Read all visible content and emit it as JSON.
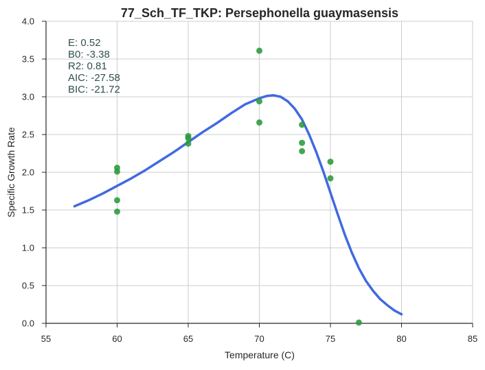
{
  "chart_data": {
    "type": "scatter",
    "title": "77_Sch_TF_TKP: Persephonella guaymasensis",
    "xlabel": "Temperature (C)",
    "ylabel": "Specific Growth Rate",
    "xlim": [
      55,
      85
    ],
    "ylim": [
      0.0,
      4.0
    ],
    "x_ticks": [
      "55",
      "60",
      "65",
      "70",
      "75",
      "80",
      "85"
    ],
    "y_ticks": [
      "0.0",
      "0.5",
      "1.0",
      "1.5",
      "2.0",
      "2.5",
      "3.0",
      "3.5",
      "4.0"
    ],
    "grid": true,
    "stats": [
      "E:  0.52",
      "B0:  -3.38",
      "R2:  0.81",
      "AIC: -27.58",
      "BIC: -21.72"
    ],
    "series": [
      {
        "kind": "points",
        "color": "#2a9a3a",
        "points": [
          [
            60,
            2.06
          ],
          [
            60,
            2.01
          ],
          [
            60,
            1.63
          ],
          [
            60,
            1.48
          ],
          [
            65,
            2.48
          ],
          [
            65,
            2.45
          ],
          [
            65,
            2.38
          ],
          [
            70,
            3.61
          ],
          [
            70,
            2.94
          ],
          [
            70,
            2.66
          ],
          [
            73,
            2.63
          ],
          [
            73,
            2.39
          ],
          [
            73,
            2.28
          ],
          [
            75,
            2.14
          ],
          [
            75,
            1.92
          ],
          [
            77,
            0.01
          ]
        ]
      },
      {
        "kind": "fit-line",
        "color": "#4169e1",
        "points": [
          [
            57,
            1.55
          ],
          [
            58,
            1.63
          ],
          [
            59,
            1.72
          ],
          [
            60,
            1.82
          ],
          [
            61,
            1.92
          ],
          [
            62,
            2.03
          ],
          [
            63,
            2.15
          ],
          [
            64,
            2.27
          ],
          [
            65,
            2.4
          ],
          [
            66,
            2.53
          ],
          [
            67,
            2.65
          ],
          [
            68,
            2.78
          ],
          [
            69,
            2.9
          ],
          [
            70,
            2.98
          ],
          [
            70.5,
            3.01
          ],
          [
            71,
            3.02
          ],
          [
            71.5,
            3.0
          ],
          [
            72,
            2.94
          ],
          [
            72.5,
            2.84
          ],
          [
            73,
            2.7
          ],
          [
            73.5,
            2.5
          ],
          [
            74,
            2.27
          ],
          [
            74.5,
            2.01
          ],
          [
            75,
            1.73
          ],
          [
            75.5,
            1.45
          ],
          [
            76,
            1.18
          ],
          [
            76.5,
            0.94
          ],
          [
            77,
            0.73
          ],
          [
            77.5,
            0.56
          ],
          [
            78,
            0.43
          ],
          [
            78.5,
            0.32
          ],
          [
            79,
            0.24
          ],
          [
            79.5,
            0.17
          ],
          [
            80,
            0.12
          ]
        ]
      }
    ]
  }
}
